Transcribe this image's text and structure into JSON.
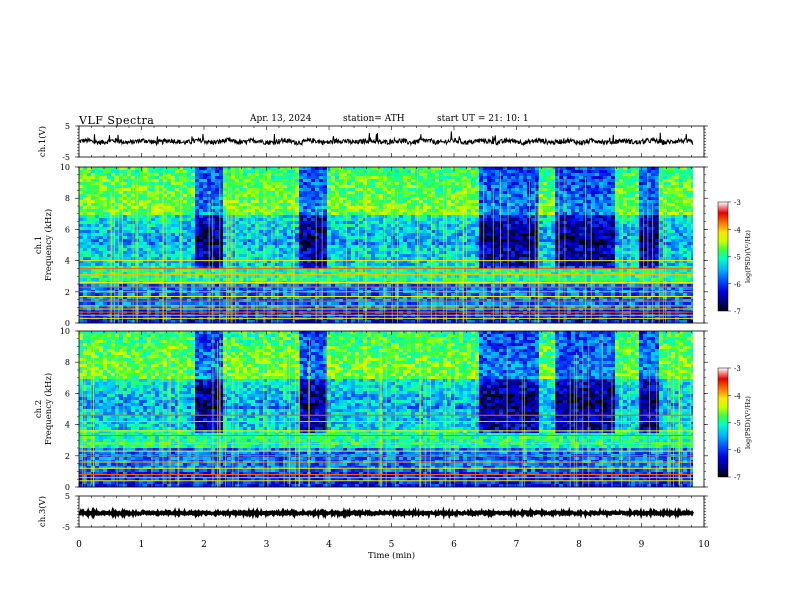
{
  "header": {
    "title": "VLF  Spectra",
    "date": "Apr. 13, 2024",
    "station": "station= ATH",
    "start_ut": "start  UT  =    21: 10: 1"
  },
  "chart_data": [
    {
      "id": "ch1v",
      "type": "line",
      "ylabel": "ch.1(V)",
      "yticks": [
        5,
        -5
      ],
      "ylim": [
        -5,
        5
      ],
      "xlim": [
        0,
        10
      ],
      "data_end_min": 9.82,
      "baseline_v": 0.0,
      "color": "#000000"
    },
    {
      "id": "ch1",
      "type": "heatmap",
      "ylabel": "ch.1\nFrequency (kHz)",
      "ylim": [
        0,
        10
      ],
      "yticks": [
        0,
        2,
        4,
        6,
        8,
        10
      ],
      "xlim": [
        0,
        10
      ],
      "data_end_min": 9.82,
      "quiet_intervals_min": [
        [
          1.85,
          2.3
        ],
        [
          3.5,
          3.95
        ],
        [
          6.4,
          7.3
        ],
        [
          7.6,
          8.55
        ],
        [
          8.9,
          9.25
        ]
      ],
      "lines_khz": [
        0.3,
        0.5,
        0.7,
        0.9,
        1.1,
        1.4,
        1.7,
        2.0,
        2.3,
        2.6,
        3.1,
        3.5,
        4.0
      ],
      "colorbar": {
        "label": "log(PSD)(V²/Hz)",
        "ticks": [
          -3,
          -4,
          -5,
          -6,
          -7
        ],
        "range": [
          -7,
          -3
        ]
      }
    },
    {
      "id": "ch2",
      "type": "heatmap",
      "ylabel": "ch.2\nFrequency (kHz)",
      "ylim": [
        0,
        10
      ],
      "yticks": [
        0,
        2,
        4,
        6,
        8,
        10
      ],
      "xlim": [
        0,
        10
      ],
      "data_end_min": 9.82,
      "quiet_intervals_min": [
        [
          1.85,
          2.3
        ],
        [
          3.5,
          3.95
        ],
        [
          6.4,
          7.3
        ],
        [
          7.6,
          8.55
        ],
        [
          8.9,
          9.25
        ]
      ],
      "lines_khz": [
        0.4,
        0.6,
        0.8,
        1.2,
        1.6,
        2.0,
        2.3,
        2.8,
        3.3,
        3.6,
        4.2,
        4.6
      ],
      "colorbar": {
        "label": "log(PSD)(V²/Hz)",
        "ticks": [
          -3,
          -4,
          -5,
          -6,
          -7
        ],
        "range": [
          -7,
          -3
        ]
      }
    },
    {
      "id": "ch3v",
      "type": "line",
      "ylabel": "ch.3(V)",
      "yticks": [
        5,
        -5
      ],
      "ylim": [
        -5,
        5
      ],
      "xlim": [
        0,
        10
      ],
      "xticks": [
        0,
        1,
        2,
        3,
        4,
        5,
        6,
        7,
        8,
        9,
        10
      ],
      "xlabel": "Time  (min)",
      "data_end_min": 9.82,
      "baseline_v": -0.5,
      "color": "#000000"
    }
  ],
  "colors": {
    "colormap": [
      "#000000",
      "#00007a",
      "#0000e0",
      "#0050ff",
      "#00b4ff",
      "#00ffc8",
      "#3cff3c",
      "#c8ff00",
      "#ffe600",
      "#ff8000",
      "#e60000",
      "#ffffff"
    ]
  }
}
